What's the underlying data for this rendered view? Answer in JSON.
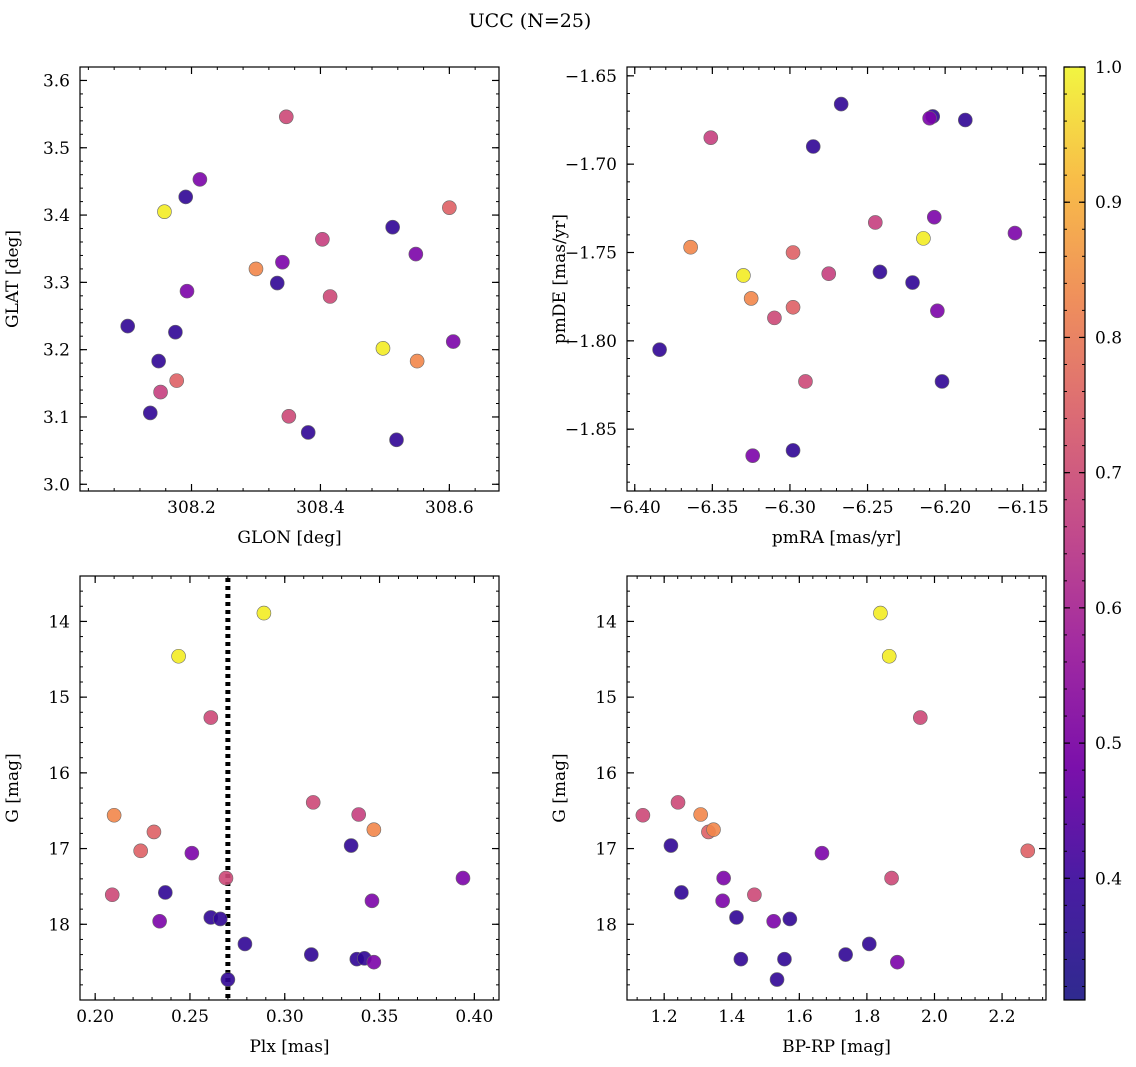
{
  "title": "UCC (N=25)",
  "colorbar": {
    "colormap": "plasma",
    "range": [
      0.31,
      1.0
    ],
    "ticks": [
      0.4,
      0.5,
      0.6,
      0.7,
      0.8,
      0.9,
      1.0
    ],
    "tick_labels": [
      "0.4",
      "0.5",
      "0.6",
      "0.7",
      "0.8",
      "0.9",
      "1.0"
    ]
  },
  "chart_data": [
    {
      "type": "scatter",
      "xlabel": "GLON [deg]",
      "ylabel": "GLAT [deg]",
      "xlim": [
        308.027,
        308.677
      ],
      "ylim": [
        2.99,
        3.62
      ],
      "y_inverted": false,
      "xticks": [
        308.2,
        308.4,
        308.6
      ],
      "xtick_labels": [
        "308.2",
        "308.4",
        "308.6"
      ],
      "yticks": [
        3.0,
        3.1,
        3.2,
        3.3,
        3.4,
        3.5,
        3.6
      ],
      "ytick_labels": [
        "3.0",
        "3.1",
        "3.2",
        "3.3",
        "3.4",
        "3.5",
        "3.6"
      ],
      "points": [
        {
          "x": 308.347,
          "y": 3.546,
          "c": 0.66
        },
        {
          "x": 308.213,
          "y": 3.453,
          "c": 0.48
        },
        {
          "x": 308.191,
          "y": 3.427,
          "c": 0.36
        },
        {
          "x": 308.158,
          "y": 3.405,
          "c": 0.98
        },
        {
          "x": 308.6,
          "y": 3.411,
          "c": 0.72
        },
        {
          "x": 308.512,
          "y": 3.382,
          "c": 0.36
        },
        {
          "x": 308.403,
          "y": 3.364,
          "c": 0.64
        },
        {
          "x": 308.548,
          "y": 3.342,
          "c": 0.48
        },
        {
          "x": 308.341,
          "y": 3.33,
          "c": 0.48
        },
        {
          "x": 308.3,
          "y": 3.32,
          "c": 0.8
        },
        {
          "x": 308.333,
          "y": 3.299,
          "c": 0.36
        },
        {
          "x": 308.193,
          "y": 3.287,
          "c": 0.48
        },
        {
          "x": 308.415,
          "y": 3.279,
          "c": 0.66
        },
        {
          "x": 308.101,
          "y": 3.235,
          "c": 0.36
        },
        {
          "x": 308.175,
          "y": 3.226,
          "c": 0.36
        },
        {
          "x": 308.606,
          "y": 3.212,
          "c": 0.48
        },
        {
          "x": 308.497,
          "y": 3.202,
          "c": 0.98
        },
        {
          "x": 308.149,
          "y": 3.183,
          "c": 0.36
        },
        {
          "x": 308.55,
          "y": 3.183,
          "c": 0.8
        },
        {
          "x": 308.177,
          "y": 3.154,
          "c": 0.72
        },
        {
          "x": 308.152,
          "y": 3.137,
          "c": 0.64
        },
        {
          "x": 308.136,
          "y": 3.106,
          "c": 0.36
        },
        {
          "x": 308.351,
          "y": 3.101,
          "c": 0.66
        },
        {
          "x": 308.381,
          "y": 3.077,
          "c": 0.36
        },
        {
          "x": 308.518,
          "y": 3.066,
          "c": 0.36
        }
      ]
    },
    {
      "type": "scatter",
      "xlabel": "pmRA [mas/yr]",
      "ylabel": "pmDE [mas/yr]",
      "xlim": [
        -6.405,
        -6.135
      ],
      "ylim": [
        -1.885,
        -1.645
      ],
      "y_inverted": false,
      "xticks": [
        -6.4,
        -6.35,
        -6.3,
        -6.25,
        -6.2,
        -6.15
      ],
      "xtick_labels": [
        "−6.40",
        "−6.35",
        "−6.30",
        "−6.25",
        "−6.20",
        "−6.15"
      ],
      "yticks": [
        -1.85,
        -1.8,
        -1.75,
        -1.7,
        -1.65
      ],
      "ytick_labels": [
        "−1.85",
        "−1.80",
        "−1.75",
        "−1.70",
        "−1.65"
      ],
      "points": [
        {
          "x": -6.267,
          "y": -1.666,
          "c": 0.36
        },
        {
          "x": -6.208,
          "y": -1.673,
          "c": 0.36
        },
        {
          "x": -6.187,
          "y": -1.675,
          "c": 0.36
        },
        {
          "x": -6.21,
          "y": -1.674,
          "c": 0.48
        },
        {
          "x": -6.351,
          "y": -1.685,
          "c": 0.64
        },
        {
          "x": -6.285,
          "y": -1.69,
          "c": 0.36
        },
        {
          "x": -6.207,
          "y": -1.73,
          "c": 0.48
        },
        {
          "x": -6.245,
          "y": -1.733,
          "c": 0.64
        },
        {
          "x": -6.214,
          "y": -1.742,
          "c": 0.98
        },
        {
          "x": -6.155,
          "y": -1.739,
          "c": 0.48
        },
        {
          "x": -6.364,
          "y": -1.747,
          "c": 0.8
        },
        {
          "x": -6.298,
          "y": -1.75,
          "c": 0.72
        },
        {
          "x": -6.242,
          "y": -1.761,
          "c": 0.36
        },
        {
          "x": -6.275,
          "y": -1.762,
          "c": 0.64
        },
        {
          "x": -6.33,
          "y": -1.763,
          "c": 0.98
        },
        {
          "x": -6.221,
          "y": -1.767,
          "c": 0.36
        },
        {
          "x": -6.325,
          "y": -1.776,
          "c": 0.8
        },
        {
          "x": -6.298,
          "y": -1.781,
          "c": 0.72
        },
        {
          "x": -6.205,
          "y": -1.783,
          "c": 0.48
        },
        {
          "x": -6.31,
          "y": -1.787,
          "c": 0.66
        },
        {
          "x": -6.384,
          "y": -1.805,
          "c": 0.36
        },
        {
          "x": -6.202,
          "y": -1.823,
          "c": 0.36
        },
        {
          "x": -6.29,
          "y": -1.823,
          "c": 0.66
        },
        {
          "x": -6.298,
          "y": -1.862,
          "c": 0.36
        },
        {
          "x": -6.324,
          "y": -1.865,
          "c": 0.48
        }
      ]
    },
    {
      "type": "scatter",
      "xlabel": "Plx [mas]",
      "ylabel": "G [mag]",
      "xlim": [
        0.192,
        0.413
      ],
      "ylim": [
        13.4,
        19.0
      ],
      "y_inverted": true,
      "xticks": [
        0.2,
        0.25,
        0.3,
        0.35,
        0.4
      ],
      "xtick_labels": [
        "0.20",
        "0.25",
        "0.30",
        "0.35",
        "0.40"
      ],
      "yticks": [
        14,
        15,
        16,
        17,
        18
      ],
      "ytick_labels": [
        "14",
        "15",
        "16",
        "17",
        "18"
      ],
      "vline": {
        "x": 0.27,
        "style": "dotted"
      },
      "points": [
        {
          "x": 0.289,
          "y": 13.89,
          "c": 0.98
        },
        {
          "x": 0.244,
          "y": 14.46,
          "c": 0.98
        },
        {
          "x": 0.261,
          "y": 15.27,
          "c": 0.66
        },
        {
          "x": 0.21,
          "y": 16.56,
          "c": 0.8
        },
        {
          "x": 0.315,
          "y": 16.39,
          "c": 0.66
        },
        {
          "x": 0.339,
          "y": 16.55,
          "c": 0.64
        },
        {
          "x": 0.347,
          "y": 16.75,
          "c": 0.8
        },
        {
          "x": 0.231,
          "y": 16.78,
          "c": 0.72
        },
        {
          "x": 0.224,
          "y": 17.03,
          "c": 0.72
        },
        {
          "x": 0.251,
          "y": 17.06,
          "c": 0.48
        },
        {
          "x": 0.335,
          "y": 16.96,
          "c": 0.36
        },
        {
          "x": 0.269,
          "y": 17.39,
          "c": 0.66
        },
        {
          "x": 0.394,
          "y": 17.39,
          "c": 0.48
        },
        {
          "x": 0.209,
          "y": 17.61,
          "c": 0.66
        },
        {
          "x": 0.237,
          "y": 17.58,
          "c": 0.36
        },
        {
          "x": 0.346,
          "y": 17.69,
          "c": 0.48
        },
        {
          "x": 0.234,
          "y": 17.96,
          "c": 0.48
        },
        {
          "x": 0.261,
          "y": 17.91,
          "c": 0.36
        },
        {
          "x": 0.266,
          "y": 17.93,
          "c": 0.36
        },
        {
          "x": 0.279,
          "y": 18.26,
          "c": 0.36
        },
        {
          "x": 0.314,
          "y": 18.4,
          "c": 0.36
        },
        {
          "x": 0.338,
          "y": 18.46,
          "c": 0.36
        },
        {
          "x": 0.342,
          "y": 18.45,
          "c": 0.36
        },
        {
          "x": 0.347,
          "y": 18.5,
          "c": 0.48
        },
        {
          "x": 0.27,
          "y": 18.73,
          "c": 0.36
        }
      ]
    },
    {
      "type": "scatter",
      "xlabel": "BP-RP [mag]",
      "ylabel": "G [mag]",
      "xlim": [
        1.09,
        2.33
      ],
      "ylim": [
        13.4,
        19.0
      ],
      "y_inverted": true,
      "xticks": [
        1.2,
        1.4,
        1.6,
        1.8,
        2.0,
        2.2
      ],
      "xtick_labels": [
        "1.2",
        "1.4",
        "1.6",
        "1.8",
        "2.0",
        "2.2"
      ],
      "yticks": [
        14,
        15,
        16,
        17,
        18
      ],
      "ytick_labels": [
        "14",
        "15",
        "16",
        "17",
        "18"
      ],
      "points": [
        {
          "x": 1.84,
          "y": 13.89,
          "c": 0.98
        },
        {
          "x": 1.866,
          "y": 14.46,
          "c": 0.98
        },
        {
          "x": 1.958,
          "y": 15.27,
          "c": 0.66
        },
        {
          "x": 1.137,
          "y": 16.56,
          "c": 0.66
        },
        {
          "x": 1.241,
          "y": 16.39,
          "c": 0.66
        },
        {
          "x": 1.308,
          "y": 16.55,
          "c": 0.8
        },
        {
          "x": 1.331,
          "y": 16.78,
          "c": 0.72
        },
        {
          "x": 1.346,
          "y": 16.75,
          "c": 0.8
        },
        {
          "x": 1.22,
          "y": 16.96,
          "c": 0.36
        },
        {
          "x": 1.667,
          "y": 17.06,
          "c": 0.48
        },
        {
          "x": 2.276,
          "y": 17.03,
          "c": 0.72
        },
        {
          "x": 1.376,
          "y": 17.39,
          "c": 0.48
        },
        {
          "x": 1.873,
          "y": 17.39,
          "c": 0.66
        },
        {
          "x": 1.251,
          "y": 17.58,
          "c": 0.36
        },
        {
          "x": 1.467,
          "y": 17.61,
          "c": 0.66
        },
        {
          "x": 1.373,
          "y": 17.69,
          "c": 0.48
        },
        {
          "x": 1.414,
          "y": 17.91,
          "c": 0.36
        },
        {
          "x": 1.524,
          "y": 17.96,
          "c": 0.48
        },
        {
          "x": 1.572,
          "y": 17.93,
          "c": 0.36
        },
        {
          "x": 1.807,
          "y": 18.26,
          "c": 0.36
        },
        {
          "x": 1.737,
          "y": 18.4,
          "c": 0.36
        },
        {
          "x": 1.427,
          "y": 18.46,
          "c": 0.36
        },
        {
          "x": 1.556,
          "y": 18.46,
          "c": 0.36
        },
        {
          "x": 1.89,
          "y": 18.5,
          "c": 0.48
        },
        {
          "x": 1.534,
          "y": 18.73,
          "c": 0.36
        }
      ]
    }
  ]
}
